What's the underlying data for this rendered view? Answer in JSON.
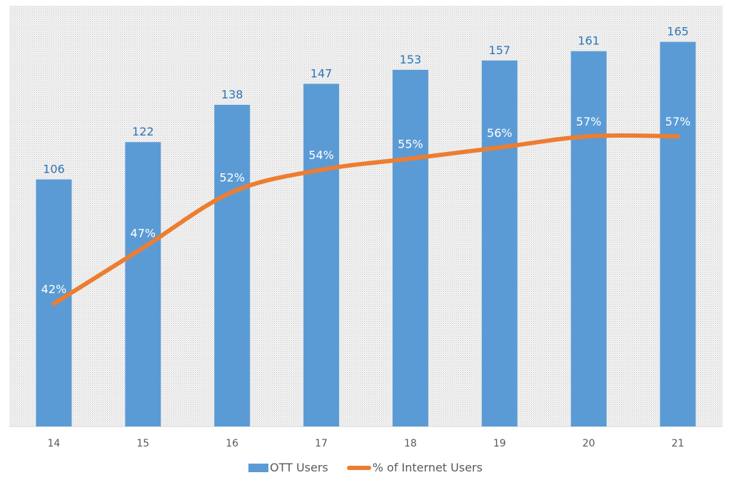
{
  "chart_data": {
    "type": "bar",
    "categories": [
      "14",
      "15",
      "16",
      "17",
      "18",
      "19",
      "20",
      "21"
    ],
    "series": [
      {
        "name": "OTT Users",
        "type": "bar",
        "axis": "primary",
        "values": [
          106,
          122,
          138,
          147,
          153,
          157,
          161,
          165
        ],
        "labels": [
          "106",
          "122",
          "138",
          "147",
          "153",
          "157",
          "161",
          "165"
        ],
        "color": "#5b9bd5"
      },
      {
        "name": "% of Internet Users",
        "type": "line",
        "axis": "secondary",
        "values": [
          42,
          47,
          52,
          54,
          55,
          56,
          57,
          57
        ],
        "labels": [
          "42%",
          "47%",
          "52%",
          "54%",
          "55%",
          "56%",
          "57%",
          "57%"
        ],
        "color": "#ed7d31"
      }
    ],
    "ylim": [
      0,
      180.5
    ],
    "y2lim": [
      31,
      68.7
    ],
    "grid": false,
    "legend": "bottom",
    "plot_background": "patterned light gray"
  }
}
